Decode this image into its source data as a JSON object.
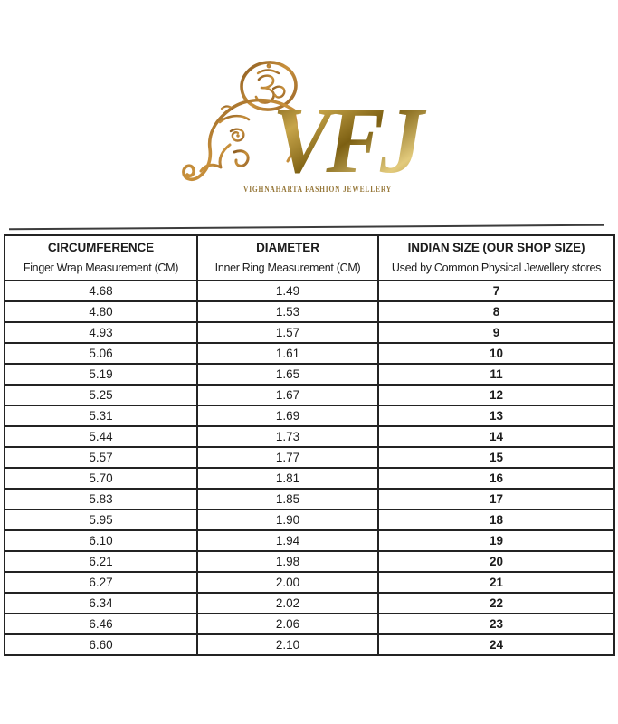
{
  "brand": {
    "initials": "VFJ",
    "tagline": "VIGHNAHARTA FASHION JEWELLERY"
  },
  "colors": {
    "gold_dark": "#6e520f",
    "gold_light": "#e3cb7d",
    "bronze": "#b0762e",
    "tagline_gold": "#97783a",
    "text": "#1c1c1c",
    "border": "#232323"
  },
  "table": {
    "columns": [
      {
        "title": "CIRCUMFERENCE",
        "subtitle": "Finger Wrap Measurement (CM)"
      },
      {
        "title": "DIAMETER",
        "subtitle": "Inner Ring Measurement (CM)"
      },
      {
        "title": "INDIAN SIZE (OUR SHOP SIZE)",
        "subtitle": "Used by Common Physical Jewellery stores"
      }
    ],
    "rows": [
      [
        "4.68",
        "1.49",
        "7"
      ],
      [
        "4.80",
        "1.53",
        "8"
      ],
      [
        "4.93",
        "1.57",
        "9"
      ],
      [
        "5.06",
        "1.61",
        "10"
      ],
      [
        "5.19",
        "1.65",
        "11"
      ],
      [
        "5.25",
        "1.67",
        "12"
      ],
      [
        "5.31",
        "1.69",
        "13"
      ],
      [
        "5.44",
        "1.73",
        "14"
      ],
      [
        "5.57",
        "1.77",
        "15"
      ],
      [
        "5.70",
        "1.81",
        "16"
      ],
      [
        "5.83",
        "1.85",
        "17"
      ],
      [
        "5.95",
        "1.90",
        "18"
      ],
      [
        "6.10",
        "1.94",
        "19"
      ],
      [
        "6.21",
        "1.98",
        "20"
      ],
      [
        "6.27",
        "2.00",
        "21"
      ],
      [
        "6.34",
        "2.02",
        "22"
      ],
      [
        "6.46",
        "2.06",
        "23"
      ],
      [
        "6.60",
        "2.10",
        "24"
      ]
    ]
  },
  "chart_data": {
    "type": "table",
    "columns": [
      "CIRCUMFERENCE - Finger Wrap Measurement (CM)",
      "DIAMETER - Inner Ring Measurement (CM)",
      "INDIAN SIZE (OUR SHOP SIZE) - Used by Common Physical Jewellery stores"
    ],
    "rows": [
      [
        4.68,
        1.49,
        7
      ],
      [
        4.8,
        1.53,
        8
      ],
      [
        4.93,
        1.57,
        9
      ],
      [
        5.06,
        1.61,
        10
      ],
      [
        5.19,
        1.65,
        11
      ],
      [
        5.25,
        1.67,
        12
      ],
      [
        5.31,
        1.69,
        13
      ],
      [
        5.44,
        1.73,
        14
      ],
      [
        5.57,
        1.77,
        15
      ],
      [
        5.7,
        1.81,
        16
      ],
      [
        5.83,
        1.85,
        17
      ],
      [
        5.95,
        1.9,
        18
      ],
      [
        6.1,
        1.94,
        19
      ],
      [
        6.21,
        1.98,
        20
      ],
      [
        6.27,
        2.0,
        21
      ],
      [
        6.34,
        2.02,
        22
      ],
      [
        6.46,
        2.06,
        23
      ],
      [
        6.6,
        2.1,
        24
      ]
    ]
  }
}
